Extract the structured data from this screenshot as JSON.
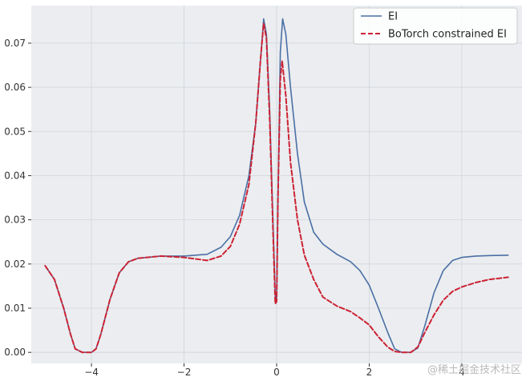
{
  "chart_data": {
    "type": "line",
    "title": "",
    "xlabel": "",
    "ylabel": "",
    "xlim": [
      -5.3,
      5.3
    ],
    "ylim": [
      -0.0025,
      0.0785
    ],
    "xticks": [
      -4,
      -2,
      0,
      2,
      4
    ],
    "yticks": [
      0.0,
      0.01,
      0.02,
      0.03,
      0.04,
      0.05,
      0.06,
      0.07
    ],
    "xtick_labels": [
      "−4",
      "−2",
      "0",
      "2",
      "4"
    ],
    "ytick_labels": [
      "0.00",
      "0.01",
      "0.02",
      "0.03",
      "0.04",
      "0.05",
      "0.06",
      "0.07"
    ],
    "grid": true,
    "legend_position": "top-right",
    "background_color": "#ebedf0",
    "series": [
      {
        "name": "EI",
        "color": "#4a6fa5",
        "style": "solid",
        "points": [
          [
            -5.0,
            0.0196
          ],
          [
            -4.8,
            0.0165
          ],
          [
            -4.6,
            0.01
          ],
          [
            -4.45,
            0.004
          ],
          [
            -4.35,
            0.0008
          ],
          [
            -4.2,
            0.0
          ],
          [
            -4.0,
            0.0
          ],
          [
            -3.9,
            0.0008
          ],
          [
            -3.8,
            0.004
          ],
          [
            -3.6,
            0.012
          ],
          [
            -3.4,
            0.018
          ],
          [
            -3.2,
            0.0205
          ],
          [
            -3.0,
            0.0213
          ],
          [
            -2.5,
            0.0218
          ],
          [
            -2.0,
            0.0218
          ],
          [
            -1.5,
            0.0222
          ],
          [
            -1.2,
            0.0238
          ],
          [
            -1.0,
            0.0262
          ],
          [
            -0.8,
            0.031
          ],
          [
            -0.6,
            0.04
          ],
          [
            -0.45,
            0.052
          ],
          [
            -0.35,
            0.066
          ],
          [
            -0.28,
            0.0755
          ],
          [
            -0.22,
            0.072
          ],
          [
            -0.15,
            0.055
          ],
          [
            -0.08,
            0.03
          ],
          [
            -0.03,
            0.013
          ],
          [
            0.0,
            0.012
          ],
          [
            0.03,
            0.035
          ],
          [
            0.08,
            0.068
          ],
          [
            0.13,
            0.0755
          ],
          [
            0.2,
            0.072
          ],
          [
            0.3,
            0.06
          ],
          [
            0.45,
            0.045
          ],
          [
            0.6,
            0.034
          ],
          [
            0.8,
            0.0272
          ],
          [
            1.0,
            0.0245
          ],
          [
            1.3,
            0.0222
          ],
          [
            1.6,
            0.0205
          ],
          [
            1.8,
            0.0185
          ],
          [
            2.0,
            0.0152
          ],
          [
            2.2,
            0.01
          ],
          [
            2.4,
            0.0045
          ],
          [
            2.55,
            0.0008
          ],
          [
            2.7,
            0.0
          ],
          [
            2.9,
            0.0
          ],
          [
            3.05,
            0.001
          ],
          [
            3.2,
            0.006
          ],
          [
            3.4,
            0.0135
          ],
          [
            3.6,
            0.0185
          ],
          [
            3.8,
            0.0208
          ],
          [
            4.0,
            0.0215
          ],
          [
            4.3,
            0.0218
          ],
          [
            4.6,
            0.0219
          ],
          [
            5.0,
            0.022
          ]
        ]
      },
      {
        "name": "BoTorch constrained EI",
        "color": "#cc2233",
        "style": "dashed",
        "points": [
          [
            -5.0,
            0.0196
          ],
          [
            -4.8,
            0.0165
          ],
          [
            -4.6,
            0.01
          ],
          [
            -4.45,
            0.004
          ],
          [
            -4.35,
            0.0008
          ],
          [
            -4.2,
            0.0
          ],
          [
            -4.0,
            0.0
          ],
          [
            -3.9,
            0.0008
          ],
          [
            -3.8,
            0.004
          ],
          [
            -3.6,
            0.012
          ],
          [
            -3.4,
            0.018
          ],
          [
            -3.2,
            0.0205
          ],
          [
            -3.0,
            0.0213
          ],
          [
            -2.5,
            0.0218
          ],
          [
            -2.0,
            0.0215
          ],
          [
            -1.5,
            0.0208
          ],
          [
            -1.2,
            0.0218
          ],
          [
            -1.0,
            0.024
          ],
          [
            -0.8,
            0.029
          ],
          [
            -0.6,
            0.038
          ],
          [
            -0.45,
            0.052
          ],
          [
            -0.35,
            0.066
          ],
          [
            -0.28,
            0.0745
          ],
          [
            -0.22,
            0.071
          ],
          [
            -0.15,
            0.053
          ],
          [
            -0.08,
            0.028
          ],
          [
            -0.03,
            0.011
          ],
          [
            0.0,
            0.0115
          ],
          [
            0.03,
            0.035
          ],
          [
            0.08,
            0.062
          ],
          [
            0.12,
            0.066
          ],
          [
            0.2,
            0.058
          ],
          [
            0.3,
            0.043
          ],
          [
            0.45,
            0.03
          ],
          [
            0.6,
            0.022
          ],
          [
            0.8,
            0.0165
          ],
          [
            1.0,
            0.0125
          ],
          [
            1.3,
            0.0105
          ],
          [
            1.6,
            0.0092
          ],
          [
            1.8,
            0.0078
          ],
          [
            2.0,
            0.0062
          ],
          [
            2.2,
            0.0035
          ],
          [
            2.4,
            0.0012
          ],
          [
            2.55,
            0.0002
          ],
          [
            2.7,
            0.0
          ],
          [
            2.9,
            0.0
          ],
          [
            3.05,
            0.0012
          ],
          [
            3.2,
            0.0045
          ],
          [
            3.4,
            0.0085
          ],
          [
            3.6,
            0.0118
          ],
          [
            3.8,
            0.0138
          ],
          [
            4.0,
            0.0148
          ],
          [
            4.3,
            0.0158
          ],
          [
            4.6,
            0.0165
          ],
          [
            5.0,
            0.017
          ]
        ]
      }
    ]
  },
  "watermark": "@稀土掘金技术社区"
}
